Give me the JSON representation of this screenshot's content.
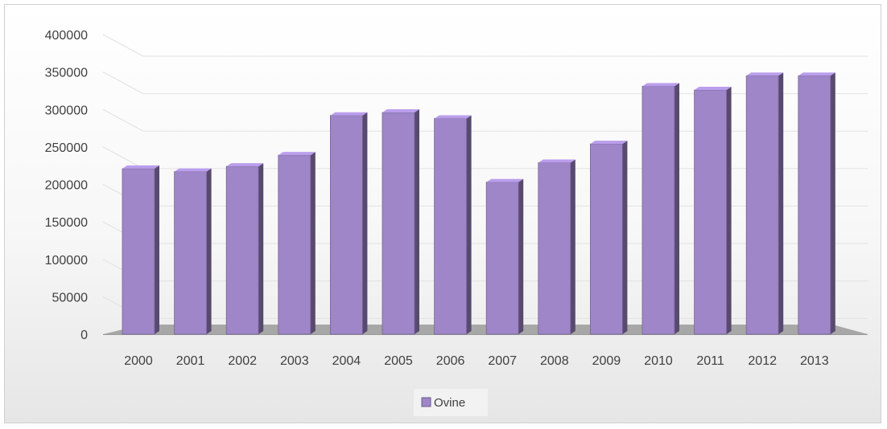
{
  "chart_data": {
    "type": "bar",
    "title": "",
    "xlabel": "",
    "ylabel": "",
    "categories": [
      "2000",
      "2001",
      "2002",
      "2003",
      "2004",
      "2005",
      "2006",
      "2007",
      "2008",
      "2009",
      "2010",
      "2011",
      "2012",
      "2013"
    ],
    "series": [
      {
        "name": "Ovine",
        "color": "#9e86c8",
        "values": [
          221000,
          217000,
          224000,
          239000,
          292000,
          296000,
          288000,
          203000,
          229000,
          254000,
          331000,
          326000,
          345000,
          345000
        ]
      }
    ],
    "ylim": [
      0,
      400000
    ],
    "yticks": [
      "0",
      "50000",
      "100000",
      "150000",
      "200000",
      "250000",
      "300000",
      "350000",
      "400000"
    ],
    "grid": true,
    "legend_position": "bottom",
    "style": "3d-column"
  }
}
